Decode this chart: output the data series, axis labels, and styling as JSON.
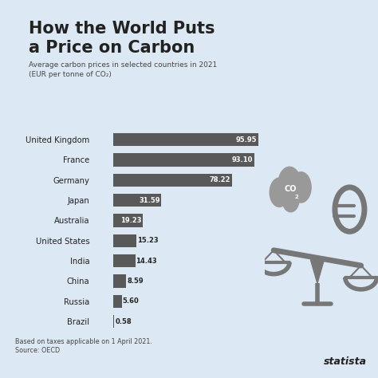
{
  "title_line1": "How the World Puts",
  "title_line2": "a Price on Carbon",
  "subtitle_line1": "Average carbon prices in selected countries in 2021",
  "subtitle_line2": "(EUR per tonne of CO₂)",
  "countries": [
    "United Kingdom",
    "France",
    "Germany",
    "Japan",
    "Australia",
    "United States",
    "India",
    "China",
    "Russia",
    "Brazil"
  ],
  "values": [
    95.95,
    93.1,
    78.22,
    31.59,
    19.23,
    15.23,
    14.43,
    8.59,
    5.6,
    0.58
  ],
  "bar_color": "#595959",
  "background_color": "#dce9f5",
  "footnote_line1": "Based on taxes applicable on 1 April 2021.",
  "footnote_line2": "Source: OECD",
  "text_color": "#222222",
  "value_color_inside": "#ffffff",
  "value_color_outside": "#222222",
  "max_value": 100,
  "accent_color": "#555555",
  "cloud_color": "#999999",
  "scale_color": "#777777"
}
